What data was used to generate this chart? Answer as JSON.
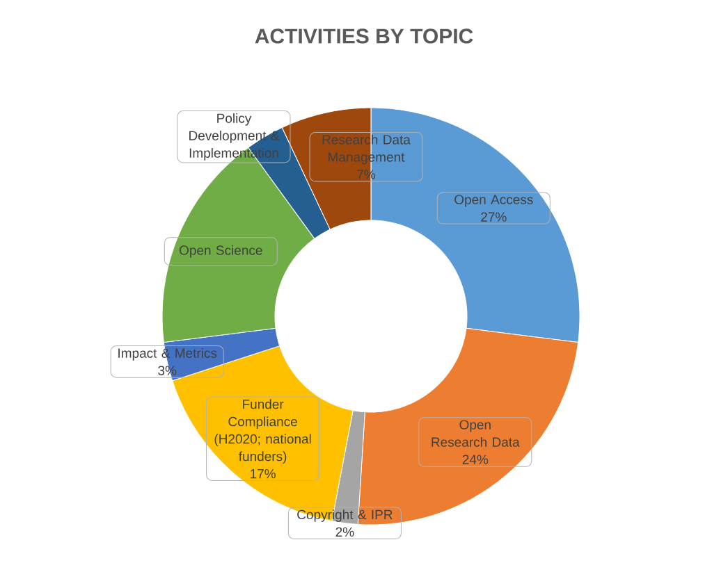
{
  "chart_data": {
    "type": "donut",
    "title": "ACTIVITIES BY TOPIC",
    "categories": [
      "Open Access",
      "Open Research Data",
      "Copyright & IPR",
      "Funder Compliance (H2020; national funders)",
      "Impact & Metrics",
      "Open Science",
      "Policy Development & Implementation",
      "Research Data Management"
    ],
    "values": [
      27,
      24,
      2,
      17,
      3,
      17,
      3,
      7
    ],
    "colors": [
      "#5b9bd5",
      "#ed7d31",
      "#a5a5a5",
      "#ffc000",
      "#4472c4",
      "#70ad47",
      "#255e91",
      "#9e480e"
    ],
    "value_labels": [
      "27%",
      "24%",
      "2%",
      "17%",
      "3%",
      null,
      null,
      "7%"
    ]
  }
}
